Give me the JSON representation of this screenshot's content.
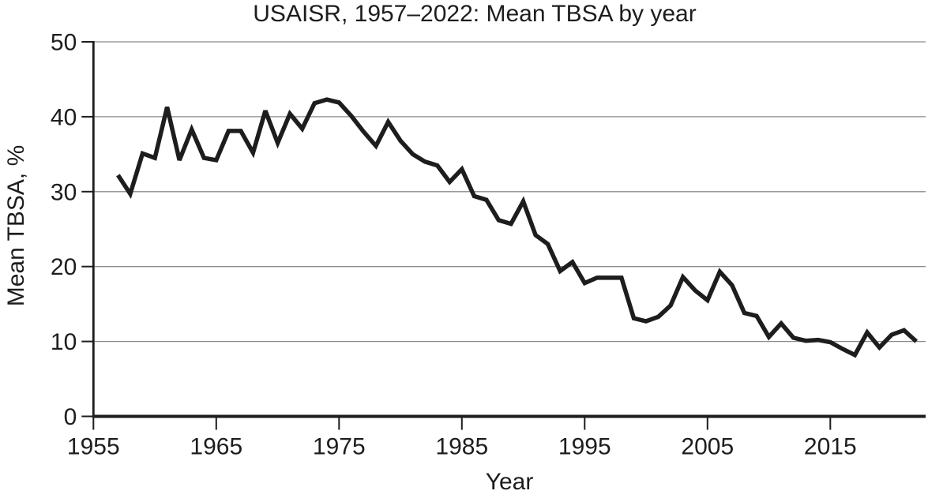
{
  "chart_data": {
    "type": "line",
    "title": "USAISR, 1957–2022: Mean TBSA by year",
    "xlabel": "Year",
    "ylabel": "Mean TBSA, %",
    "series_name": "Mean TBSA by year",
    "x": [
      1957,
      1958,
      1959,
      1960,
      1961,
      1962,
      1963,
      1964,
      1965,
      1966,
      1967,
      1968,
      1969,
      1970,
      1971,
      1972,
      1973,
      1974,
      1975,
      1976,
      1977,
      1978,
      1979,
      1980,
      1981,
      1982,
      1983,
      1984,
      1985,
      1986,
      1987,
      1988,
      1989,
      1990,
      1991,
      1992,
      1993,
      1994,
      1995,
      1996,
      1997,
      1998,
      1999,
      2000,
      2001,
      2002,
      2003,
      2004,
      2005,
      2006,
      2007,
      2008,
      2009,
      2010,
      2011,
      2012,
      2013,
      2014,
      2015,
      2016,
      2017,
      2018,
      2019,
      2020,
      2021,
      2022
    ],
    "values": [
      32.2,
      29.7,
      35.1,
      34.5,
      41.3,
      34.2,
      38.3,
      34.5,
      34.2,
      38.1,
      38.1,
      35.2,
      40.8,
      36.5,
      40.4,
      38.4,
      41.8,
      42.3,
      41.9,
      40.1,
      38.0,
      36.1,
      39.3,
      36.8,
      35.0,
      34.0,
      33.5,
      31.3,
      33.0,
      29.4,
      28.9,
      26.2,
      25.7,
      28.7,
      24.2,
      23.0,
      19.4,
      20.6,
      17.8,
      18.5,
      18.5,
      18.5,
      13.1,
      12.7,
      13.3,
      14.8,
      18.6,
      16.8,
      15.5,
      19.3,
      17.5,
      13.8,
      13.4,
      10.6,
      12.4,
      10.5,
      10.1,
      10.2,
      9.9,
      9.0,
      8.2,
      11.2,
      9.2,
      10.9,
      11.5,
      10.0
    ],
    "xticks": [
      1955,
      1965,
      1975,
      1985,
      1995,
      2005,
      2015
    ],
    "yticks": [
      0,
      10,
      20,
      30,
      40,
      50
    ],
    "xlim": [
      1955,
      2023
    ],
    "ylim": [
      0,
      50
    ],
    "grid": "horizontal-only",
    "legend": "none",
    "line_color": "#1d1d1f",
    "axis_color": "#1d1d1f",
    "grid_color": "#8c8c8c",
    "background_color": "#ffffff"
  }
}
